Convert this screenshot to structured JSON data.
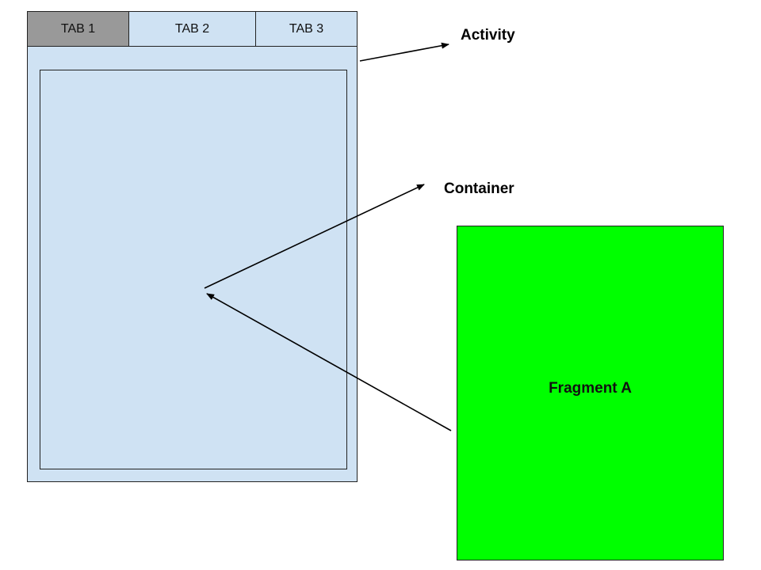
{
  "tabs": [
    {
      "label": "TAB 1",
      "selected": true
    },
    {
      "label": "TAB 2",
      "selected": false
    },
    {
      "label": "TAB 3",
      "selected": false
    }
  ],
  "labels": {
    "activity": "Activity",
    "container": "Container",
    "fragment": "Fragment A"
  },
  "colors": {
    "activity_fill": "#cfe2f3",
    "selected_tab_fill": "#999999",
    "fragment_fill": "#00ff00",
    "outline": "#222222"
  }
}
